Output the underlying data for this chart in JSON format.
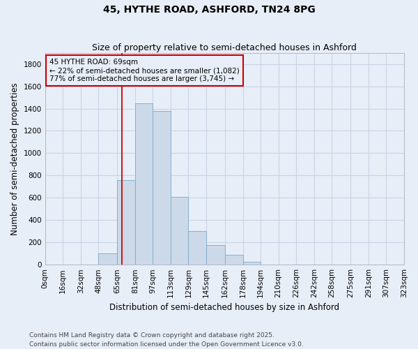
{
  "title": "45, HYTHE ROAD, ASHFORD, TN24 8PG",
  "subtitle": "Size of property relative to semi-detached houses in Ashford",
  "xlabel": "Distribution of semi-detached houses by size in Ashford",
  "ylabel": "Number of semi-detached properties",
  "bin_labels": [
    "0sqm",
    "16sqm",
    "32sqm",
    "48sqm",
    "65sqm",
    "81sqm",
    "97sqm",
    "113sqm",
    "129sqm",
    "145sqm",
    "162sqm",
    "178sqm",
    "194sqm",
    "210sqm",
    "226sqm",
    "242sqm",
    "258sqm",
    "275sqm",
    "291sqm",
    "307sqm",
    "323sqm"
  ],
  "bin_edges": [
    0,
    16,
    32,
    48,
    65,
    81,
    97,
    113,
    129,
    145,
    162,
    178,
    194,
    210,
    226,
    242,
    258,
    275,
    291,
    307,
    323
  ],
  "bar_heights": [
    0,
    0,
    0,
    100,
    760,
    1450,
    1380,
    610,
    300,
    175,
    90,
    25,
    0,
    0,
    0,
    0,
    0,
    0,
    0,
    0
  ],
  "bar_color": "#ccd9e8",
  "bar_edge_color": "#7aaac8",
  "grid_color": "#c8d4e4",
  "bg_color": "#e8eef8",
  "vline_x": 69,
  "vline_color": "#cc0000",
  "annotation_line1": "45 HYTHE ROAD: 69sqm",
  "annotation_line2": "← 22% of semi-detached houses are smaller (1,082)",
  "annotation_line3": "77% of semi-detached houses are larger (3,745) →",
  "annotation_box_color": "#cc0000",
  "ylim": [
    0,
    1900
  ],
  "yticks": [
    0,
    200,
    400,
    600,
    800,
    1000,
    1200,
    1400,
    1600,
    1800
  ],
  "footnote": "Contains HM Land Registry data © Crown copyright and database right 2025.\nContains public sector information licensed under the Open Government Licence v3.0.",
  "title_fontsize": 10,
  "subtitle_fontsize": 9,
  "label_fontsize": 8.5,
  "tick_fontsize": 7.5,
  "annotation_fontsize": 7.5,
  "footnote_fontsize": 6.5
}
